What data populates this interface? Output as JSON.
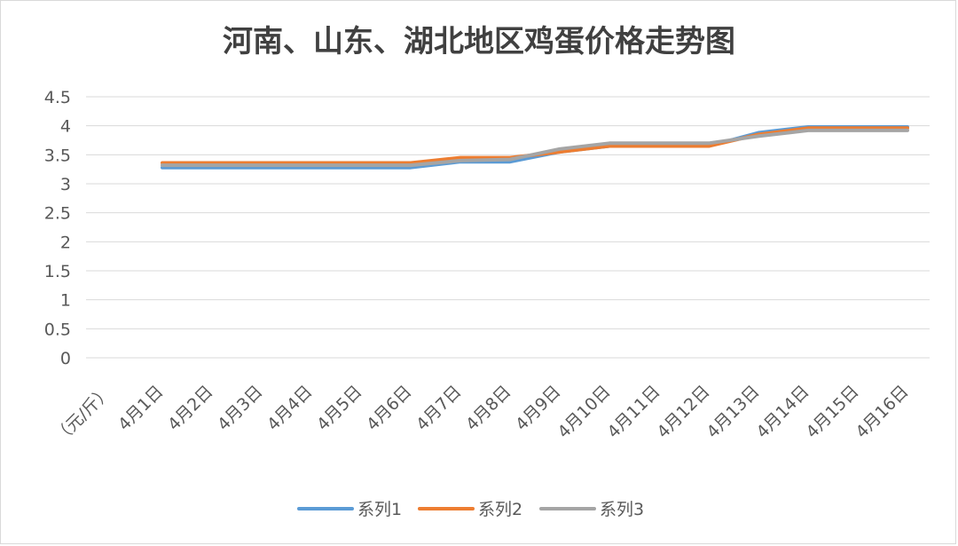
{
  "chart_data": {
    "type": "line",
    "title": "河南、山东、湖北地区鸡蛋价格走势图",
    "unit_label": "（元/斤）",
    "categories": [
      "4月1日",
      "4月2日",
      "4月3日",
      "4月4日",
      "4月5日",
      "4月6日",
      "4月7日",
      "4月8日",
      "4月9日",
      "4月10日",
      "4月11日",
      "4月12日",
      "4月13日",
      "4月14日",
      "4月15日",
      "4月16日"
    ],
    "y_ticks": [
      "0",
      "0.5",
      "1",
      "1.5",
      "2",
      "2.5",
      "3",
      "3.5",
      "4",
      "4.5"
    ],
    "ylim": [
      0,
      4.5
    ],
    "grid": true,
    "legend_position": "bottom",
    "series": [
      {
        "name": "系列1",
        "color": "#5b9bd5",
        "values": [
          3.28,
          3.28,
          3.28,
          3.28,
          3.28,
          3.28,
          3.38,
          3.38,
          3.55,
          3.65,
          3.65,
          3.65,
          3.88,
          3.98,
          3.98,
          3.98
        ]
      },
      {
        "name": "系列2",
        "color": "#ed7d31",
        "values": [
          3.36,
          3.36,
          3.36,
          3.36,
          3.36,
          3.36,
          3.45,
          3.45,
          3.55,
          3.65,
          3.65,
          3.65,
          3.85,
          3.96,
          3.96,
          3.96
        ]
      },
      {
        "name": "系列3",
        "color": "#a5a5a5",
        "values": [
          3.32,
          3.32,
          3.32,
          3.32,
          3.32,
          3.32,
          3.4,
          3.42,
          3.6,
          3.7,
          3.7,
          3.7,
          3.82,
          3.92,
          3.92,
          3.92
        ]
      }
    ]
  }
}
